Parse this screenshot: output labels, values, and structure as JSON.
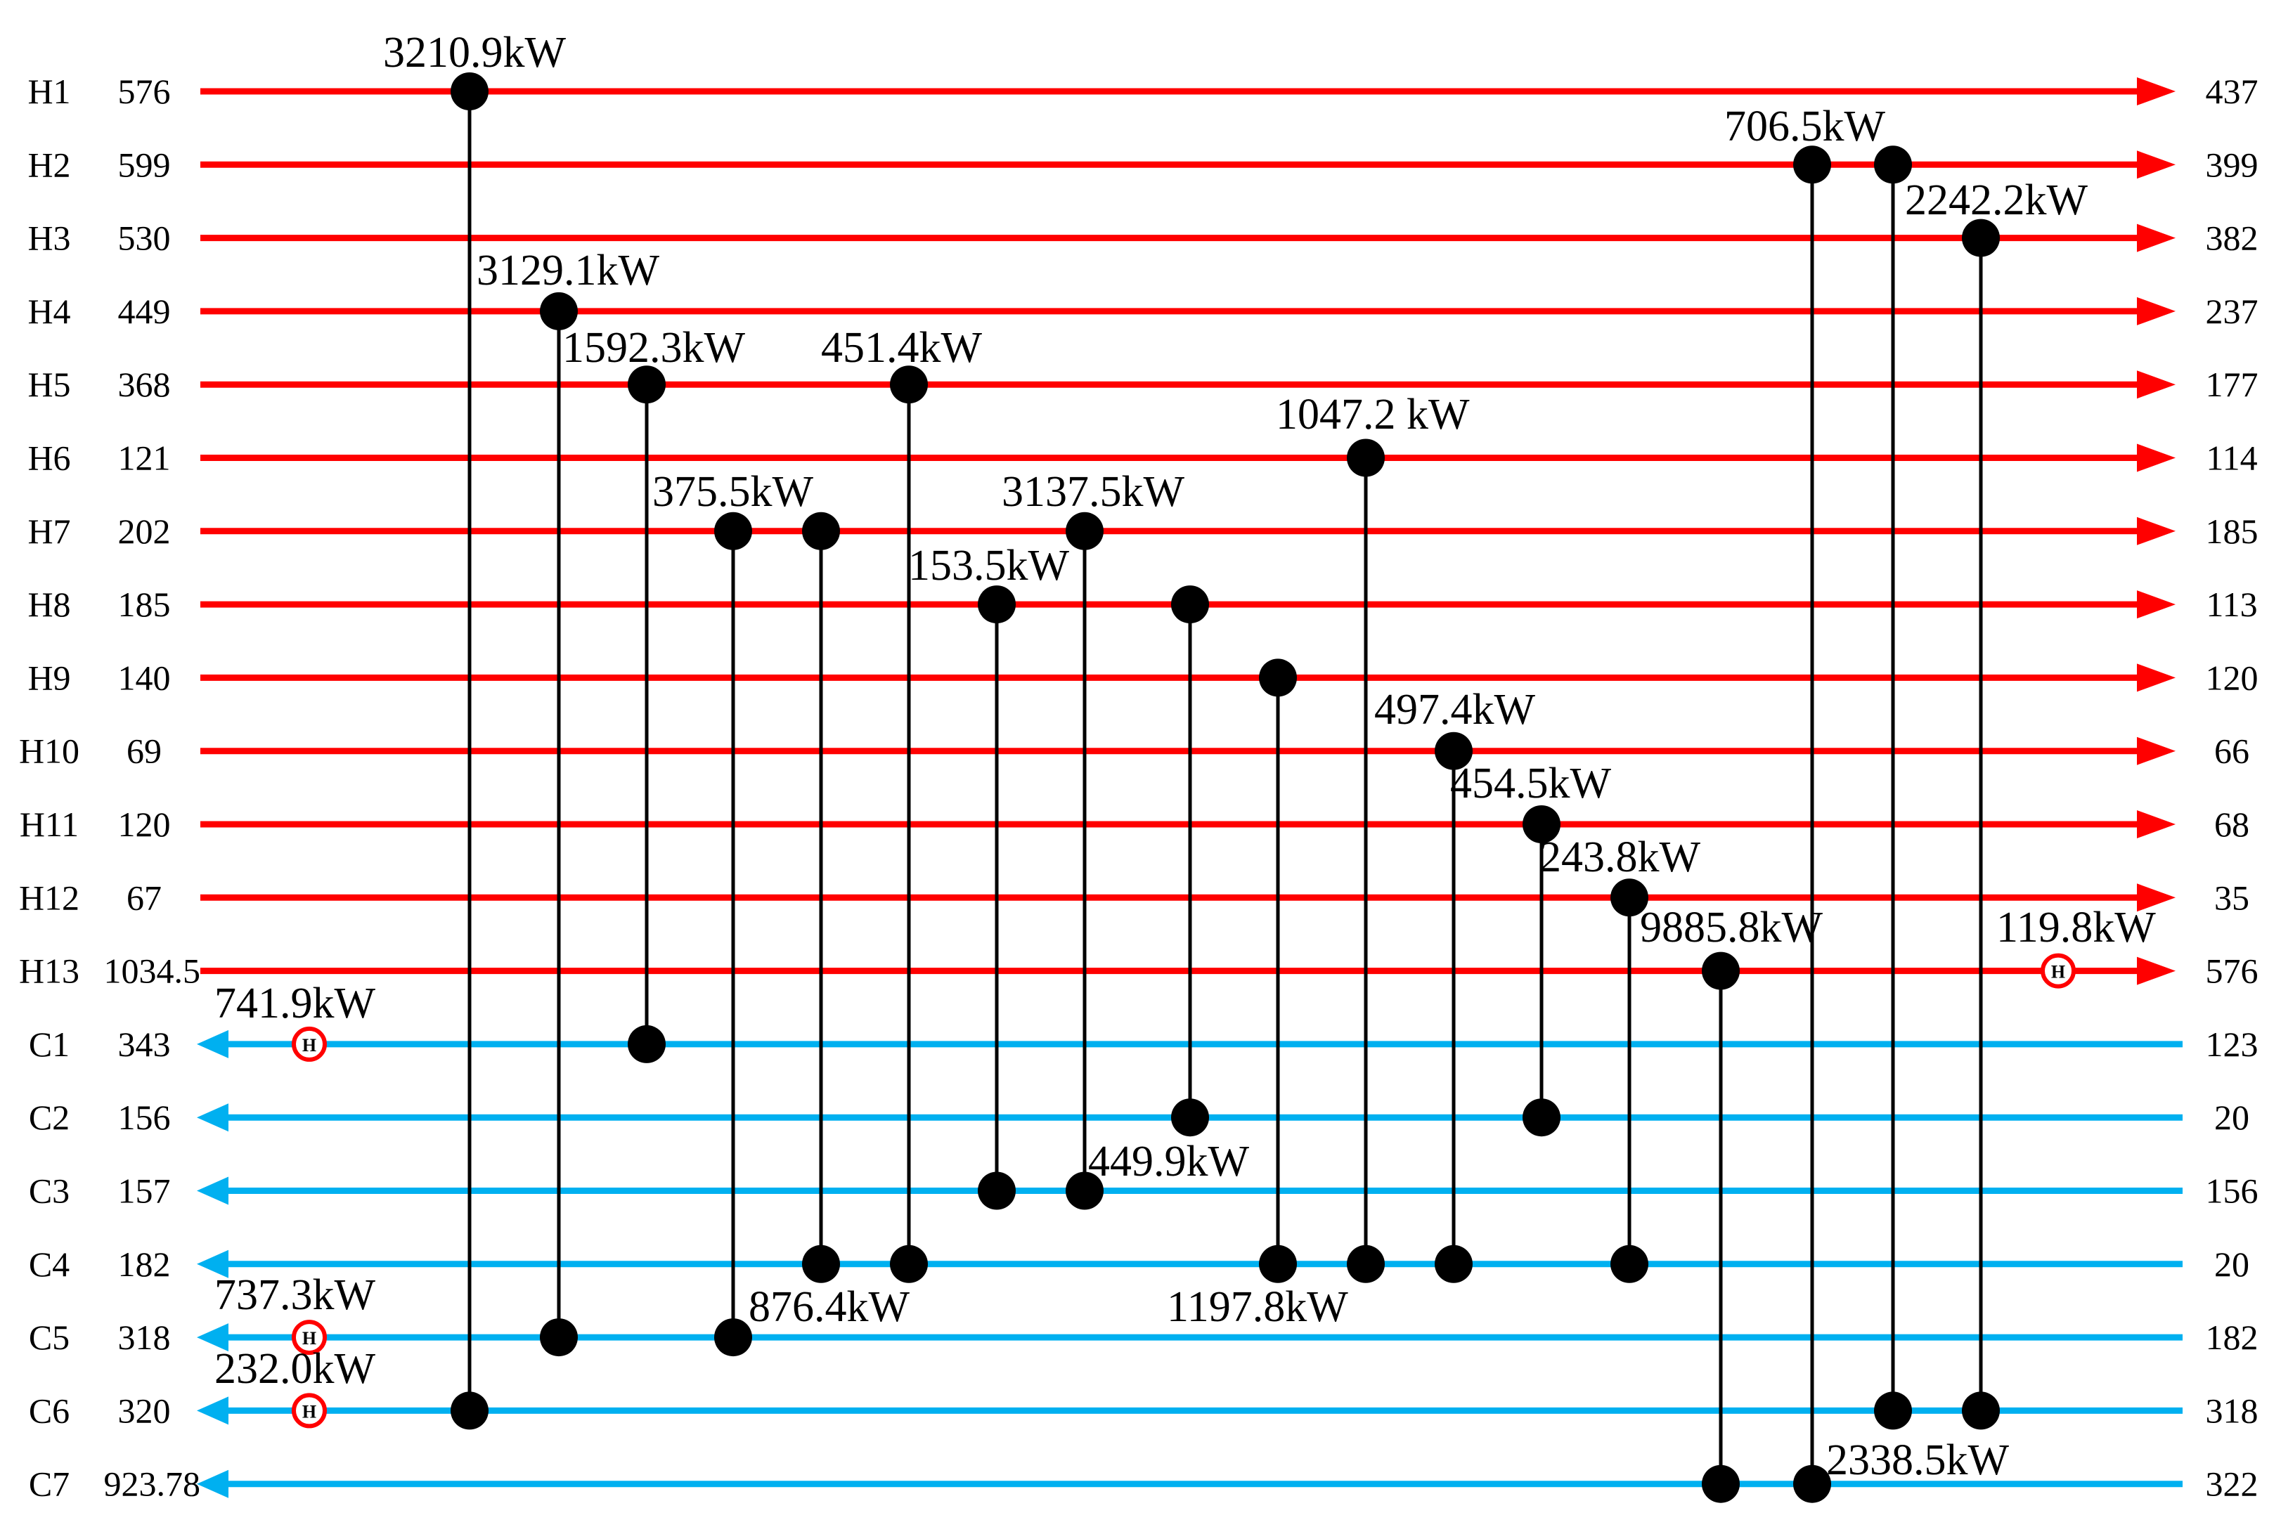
{
  "colors": {
    "hot": "#ff0000",
    "cold": "#00b0f0",
    "link": "#000000",
    "heater": "#ff0000"
  },
  "hot_streams": [
    {
      "name": "H1",
      "t_in": "576",
      "t_out": "437"
    },
    {
      "name": "H2",
      "t_in": "599",
      "t_out": "399"
    },
    {
      "name": "H3",
      "t_in": "530",
      "t_out": "382"
    },
    {
      "name": "H4",
      "t_in": "449",
      "t_out": "237"
    },
    {
      "name": "H5",
      "t_in": "368",
      "t_out": "177"
    },
    {
      "name": "H6",
      "t_in": "121",
      "t_out": "114"
    },
    {
      "name": "H7",
      "t_in": "202",
      "t_out": "185"
    },
    {
      "name": "H8",
      "t_in": "185",
      "t_out": "113"
    },
    {
      "name": "H9",
      "t_in": "140",
      "t_out": "120"
    },
    {
      "name": "H10",
      "t_in": "69",
      "t_out": "66"
    },
    {
      "name": "H11",
      "t_in": "120",
      "t_out": "68"
    },
    {
      "name": "H12",
      "t_in": "67",
      "t_out": "35"
    },
    {
      "name": "H13",
      "t_in": "1034.5",
      "t_out": "576"
    }
  ],
  "cold_streams": [
    {
      "name": "C1",
      "t_in": "343",
      "t_out": "123"
    },
    {
      "name": "C2",
      "t_in": "156",
      "t_out": "20"
    },
    {
      "name": "C3",
      "t_in": "157",
      "t_out": "156"
    },
    {
      "name": "C4",
      "t_in": "182",
      "t_out": "20"
    },
    {
      "name": "C5",
      "t_in": "318",
      "t_out": "182"
    },
    {
      "name": "C6",
      "t_in": "320",
      "t_out": "318"
    },
    {
      "name": "C7",
      "t_in": "923.78",
      "t_out": "322"
    }
  ],
  "heater_symbol": "H",
  "exchangers": [
    {
      "hot": "H1",
      "cold": "C6",
      "duty": "3210.9kW"
    },
    {
      "hot": "H4",
      "cold": "C5",
      "duty": "3129.1kW"
    },
    {
      "hot": "H5",
      "cold": "C1",
      "duty": "1592.3kW"
    },
    {
      "hot": "H7",
      "cold": "C5",
      "duty": "375.5kW"
    },
    {
      "hot": "H7",
      "cold": "C4",
      "duty": ""
    },
    {
      "hot": "H5",
      "cold": "C4",
      "duty": "451.4kW"
    },
    {
      "hot": "H8",
      "cold": "C3",
      "duty": "153.5kW"
    },
    {
      "hot": "H7",
      "cold": "C3",
      "duty": "3137.5kW"
    },
    {
      "hot": "H8",
      "cold": "C2",
      "duty": ""
    },
    {
      "hot": "H9",
      "cold": "C4",
      "duty": ""
    },
    {
      "hot": "H6",
      "cold": "C4",
      "duty": "1047.2 kW"
    },
    {
      "hot": "H10",
      "cold": "C4",
      "duty": "497.4kW"
    },
    {
      "hot": "H11",
      "cold": "C2",
      "duty": "454.5kW"
    },
    {
      "hot": "H12",
      "cold": "C4",
      "duty": "243.8kW"
    },
    {
      "hot": "H13",
      "cold": "C7",
      "duty": "9885.8kW"
    },
    {
      "hot": "H2",
      "cold": "C7",
      "duty": "706.5kW"
    },
    {
      "hot": "H2",
      "cold": "C6",
      "duty": ""
    },
    {
      "hot": "H3",
      "cold": "C6",
      "duty": "2242.2kW"
    }
  ],
  "heaters": [
    {
      "stream": "H13",
      "duty": "119.8kW"
    },
    {
      "stream": "C1",
      "duty": "741.9kW"
    },
    {
      "stream": "C5",
      "duty": "737.3kW"
    },
    {
      "stream": "C6",
      "duty": "232.0kW"
    }
  ],
  "floating_labels": [
    "449.9kW",
    "876.4kW",
    "1197.8kW",
    "2338.5kW"
  ]
}
